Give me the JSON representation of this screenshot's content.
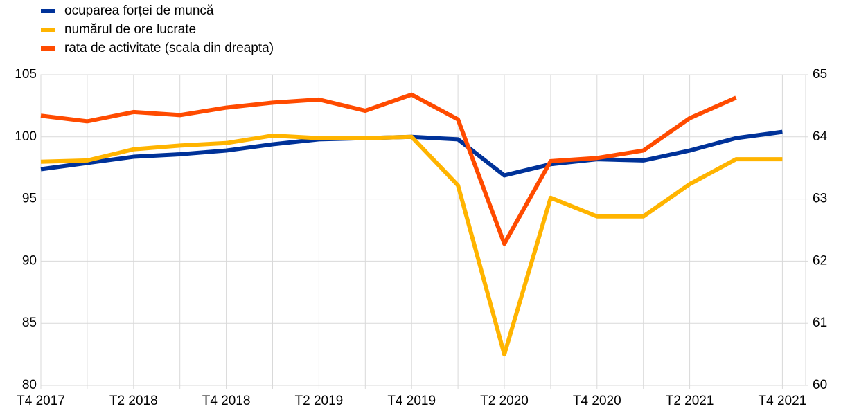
{
  "chart_data": {
    "type": "line",
    "categories": [
      "T4 2017",
      null,
      "T2 2018",
      null,
      "T4 2018",
      null,
      "T2 2019",
      null,
      "T4 2019",
      null,
      "T2 2020",
      null,
      "T4 2020",
      null,
      "T2 2021",
      null,
      "T4 2021"
    ],
    "series": [
      {
        "name": "ocuparea forței de muncă",
        "color": "#003299",
        "values": [
          97.4,
          97.9,
          98.4,
          98.6,
          98.9,
          99.4,
          99.8,
          99.9,
          100.0,
          99.8,
          96.9,
          97.8,
          98.2,
          98.1,
          98.9,
          99.9,
          100.4
        ]
      },
      {
        "name": "numărul de ore lucrate",
        "color": "#ffb400",
        "values": [
          98.0,
          98.1,
          99.0,
          99.3,
          99.5,
          100.1,
          99.9,
          99.9,
          100.0,
          96.1,
          82.5,
          95.1,
          93.6,
          93.6,
          96.2,
          98.2,
          98.2
        ]
      },
      {
        "name": "rata de activitate (scala din dreapta)",
        "color": "#ff4b00",
        "axis": "y2",
        "values": [
          64.34,
          64.25,
          64.4,
          64.35,
          64.47,
          64.55,
          64.6,
          64.42,
          64.68,
          64.28,
          62.28,
          63.61,
          63.66,
          63.78,
          64.3,
          64.63,
          null
        ]
      }
    ],
    "ylim": [
      80,
      105
    ],
    "yticks": [
      80,
      85,
      90,
      95,
      100,
      105
    ],
    "y2lim": [
      60,
      65
    ],
    "y2ticks": [
      60,
      61,
      62,
      63,
      64,
      65
    ],
    "grid": true,
    "legend": "top-left"
  }
}
